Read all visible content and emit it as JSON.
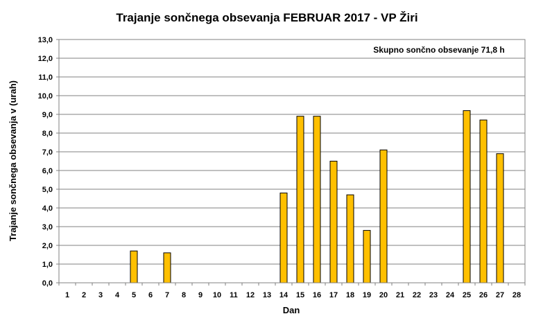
{
  "chart_data": {
    "type": "bar",
    "title": "Trajanje  sončnega obsevanja  FEBRUAR 2017 - VP Žiri",
    "xlabel": "Dan",
    "ylabel": "Trajanje  sončnega obsevanja  v (urah)",
    "annotation": "Skupno sončno obsevanje  71,8 h",
    "ylim": [
      0,
      13
    ],
    "y_ticks": [
      "0,0",
      "1,0",
      "2,0",
      "3,0",
      "4,0",
      "5,0",
      "6,0",
      "7,0",
      "8,0",
      "9,0",
      "10,0",
      "11,0",
      "12,0",
      "13,0"
    ],
    "categories": [
      "1",
      "2",
      "3",
      "4",
      "5",
      "6",
      "7",
      "8",
      "9",
      "10",
      "11",
      "12",
      "13",
      "14",
      "15",
      "16",
      "17",
      "18",
      "19",
      "20",
      "21",
      "22",
      "23",
      "24",
      "25",
      "26",
      "27",
      "28"
    ],
    "values": [
      0,
      0,
      0,
      0,
      1.7,
      0,
      1.6,
      0,
      0,
      0,
      0,
      0,
      0,
      4.8,
      8.9,
      8.9,
      6.5,
      4.7,
      2.8,
      7.1,
      0,
      0,
      0,
      0,
      9.2,
      8.7,
      6.9,
      0
    ],
    "grid": true,
    "legend": "none",
    "colors": {
      "bar_fill": "#FFC000",
      "bar_stroke": "#000000",
      "grid": "#808080",
      "plot_bg": "#ffffff"
    }
  }
}
